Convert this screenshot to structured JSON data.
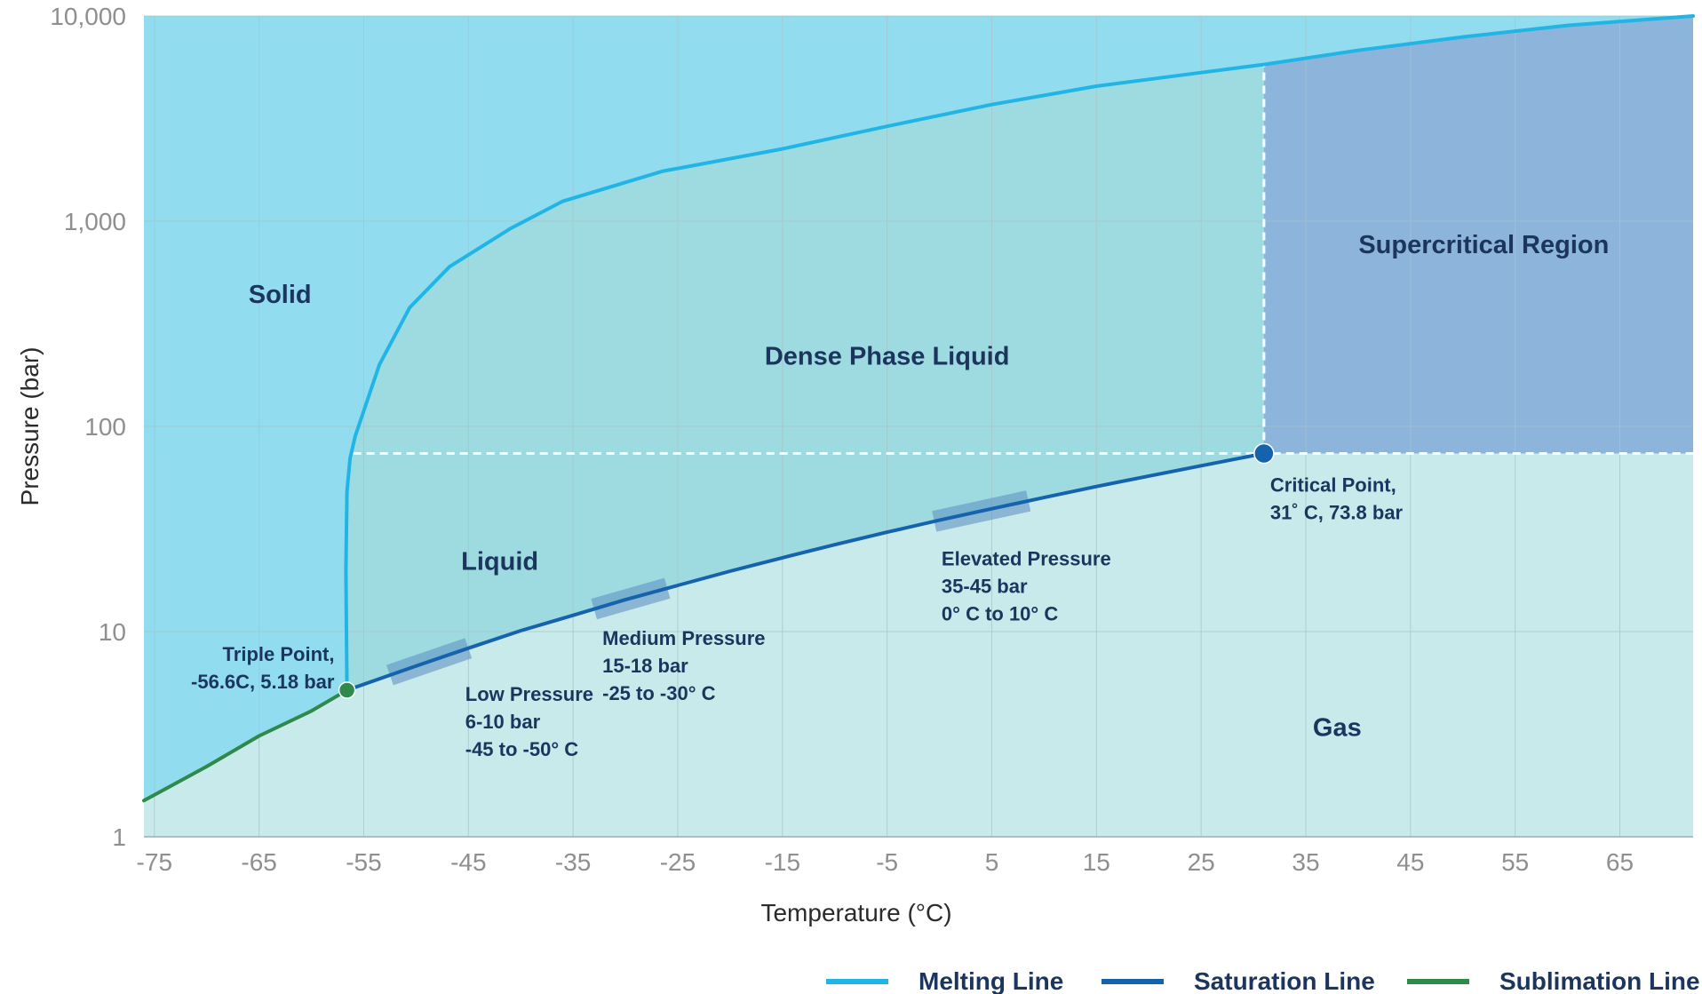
{
  "chart_data": {
    "type": "line",
    "xlabel": "Temperature (°C)",
    "ylabel": "Pressure (bar)",
    "xlim": [
      -76,
      72
    ],
    "ylim": [
      1,
      10000
    ],
    "y_scale": "log",
    "grid": true,
    "legend_position": "bottom-right",
    "x_ticks": [
      -75,
      -65,
      -55,
      -45,
      -35,
      -25,
      -15,
      -5,
      5,
      15,
      25,
      35,
      45,
      55,
      65
    ],
    "x_tick_labels": [
      "-75",
      "-65",
      "-55",
      "-45",
      "-35",
      "-25",
      "-15",
      "-5",
      "5",
      "15",
      "25",
      "35",
      "45",
      "55",
      "65"
    ],
    "y_ticks": [
      1,
      10,
      100,
      1000,
      10000
    ],
    "y_tick_labels": [
      "1",
      "10",
      "100",
      "1,000",
      "10,000"
    ],
    "series": [
      {
        "name": "Melting Line",
        "color": "#21b5e6",
        "points": [
          [
            -56.6,
            5.18
          ],
          [
            -56.7,
            20
          ],
          [
            -56.6,
            48
          ],
          [
            -56.3,
            70
          ],
          [
            -55.8,
            90
          ],
          [
            -53.5,
            200
          ],
          [
            -50.6,
            380
          ],
          [
            -46.8,
            600
          ],
          [
            -41,
            920
          ],
          [
            -36,
            1250
          ],
          [
            -26.5,
            1750
          ],
          [
            -15,
            2250
          ],
          [
            -5,
            2900
          ],
          [
            5,
            3700
          ],
          [
            15,
            4550
          ],
          [
            25,
            5300
          ],
          [
            31,
            5800
          ],
          [
            40,
            6800
          ],
          [
            50,
            7900
          ],
          [
            60,
            9000
          ],
          [
            72,
            10000
          ]
        ]
      },
      {
        "name": "Saturation Line",
        "color": "#1562ad",
        "points": [
          [
            -56.6,
            5.18
          ],
          [
            -50,
            6.8
          ],
          [
            -45,
            8.3
          ],
          [
            -40,
            10.1
          ],
          [
            -35,
            12
          ],
          [
            -30,
            14.3
          ],
          [
            -25,
            16.8
          ],
          [
            -20,
            19.7
          ],
          [
            -15,
            22.9
          ],
          [
            -10,
            26.5
          ],
          [
            -5,
            30.5
          ],
          [
            0,
            34.9
          ],
          [
            5,
            39.7
          ],
          [
            10,
            45
          ],
          [
            15,
            50.9
          ],
          [
            20,
            57.3
          ],
          [
            25,
            64.3
          ],
          [
            31,
            73.8
          ]
        ]
      },
      {
        "name": "Sublimation Line",
        "color": "#2e8a4a",
        "points": [
          [
            -76,
            1.5
          ],
          [
            -70,
            2.2
          ],
          [
            -65,
            3.1
          ],
          [
            -60,
            4.1
          ],
          [
            -56.6,
            5.18
          ]
        ]
      }
    ],
    "regions": [
      {
        "label": "Solid",
        "color": "#92dcef"
      },
      {
        "label": "Dense Phase Liquid",
        "color": "#9edbe0"
      },
      {
        "label": "Liquid",
        "color": "#9edbe0"
      },
      {
        "label": "Supercritical Region",
        "color": "#8db4da"
      },
      {
        "label": "Gas",
        "color": "#c8eaea"
      }
    ],
    "points": [
      {
        "name": "triple-point",
        "x": -56.6,
        "y": 5.18,
        "color": "#2e8a4a",
        "label": [
          "Triple Point,",
          "-56.6C, 5.18 bar"
        ]
      },
      {
        "name": "critical-point",
        "x": 31,
        "y": 73.8,
        "color": "#1562ad",
        "label": [
          "Critical Point,",
          "31˚ C, 73.8 bar"
        ]
      }
    ],
    "pressure_bands": [
      {
        "name": "low-pressure",
        "x_range": [
          -52.5,
          -45
        ],
        "label": [
          "Low Pressure",
          "6-10 bar",
          "-45 to -50° C"
        ]
      },
      {
        "name": "medium-pressure",
        "x_range": [
          -33,
          -26
        ],
        "label": [
          "Medium Pressure",
          "15-18 bar",
          "-25 to -30° C"
        ]
      },
      {
        "name": "elevated-pressure",
        "x_range": [
          -0.5,
          8.5
        ],
        "label": [
          "Elevated Pressure",
          "35-45 bar",
          "0° C to 10° C"
        ]
      }
    ]
  }
}
